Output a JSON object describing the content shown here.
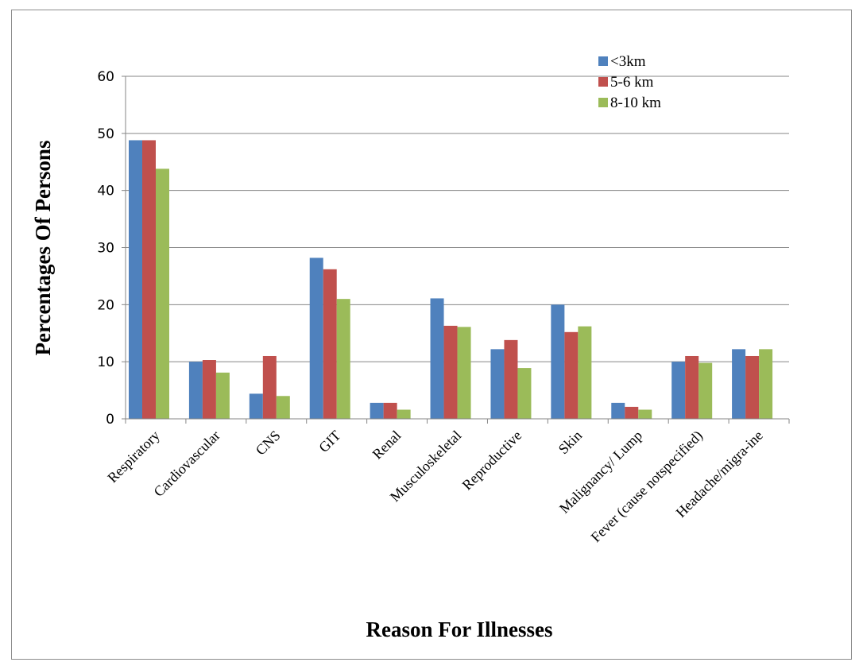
{
  "chart_data": {
    "type": "bar",
    "title": "",
    "xlabel": "Reason For Illnesses",
    "ylabel": "Percentages Of Persons",
    "ylim": [
      0,
      60
    ],
    "yticks": [
      "0",
      "10",
      "20",
      "30",
      "40",
      "50",
      "60"
    ],
    "grid": true,
    "legend_position": "top-right",
    "categories": [
      "Respiratory",
      "Cardiovascular",
      "CNS",
      "GIT",
      "Renal",
      "Musculoskeletal",
      "Reproductive",
      "Skin",
      "Malignancy/ Lump",
      "Fever (cause notspecified)",
      "Headache/migra-ine"
    ],
    "series": [
      {
        "name": "<3km",
        "color": "#4f81bd",
        "values": [
          48.8,
          10.0,
          4.4,
          28.2,
          2.8,
          21.1,
          12.2,
          20.0,
          2.8,
          10.0,
          12.2
        ]
      },
      {
        "name": "5-6 km",
        "color": "#c0504d",
        "values": [
          48.8,
          10.3,
          11.0,
          26.2,
          2.8,
          16.3,
          13.8,
          15.2,
          2.1,
          11.0,
          11.0
        ]
      },
      {
        "name": "8-10 km",
        "color": "#9bbb59",
        "values": [
          43.8,
          8.1,
          4.0,
          21.0,
          1.6,
          16.1,
          8.9,
          16.2,
          1.6,
          9.8,
          12.2
        ]
      }
    ]
  }
}
